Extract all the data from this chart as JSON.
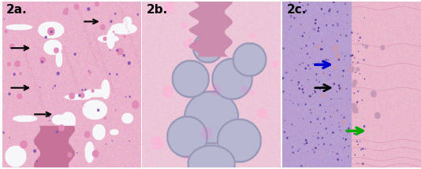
{
  "figsize": [
    5.34,
    2.15
  ],
  "dpi": 100,
  "panels": [
    {
      "label": "2a.",
      "label_fontsize": 11,
      "label_color": "#000000"
    },
    {
      "label": "2b.",
      "label_fontsize": 11,
      "label_color": "#000000"
    },
    {
      "label": "2c.",
      "label_fontsize": 11,
      "label_color": "#000000"
    }
  ]
}
